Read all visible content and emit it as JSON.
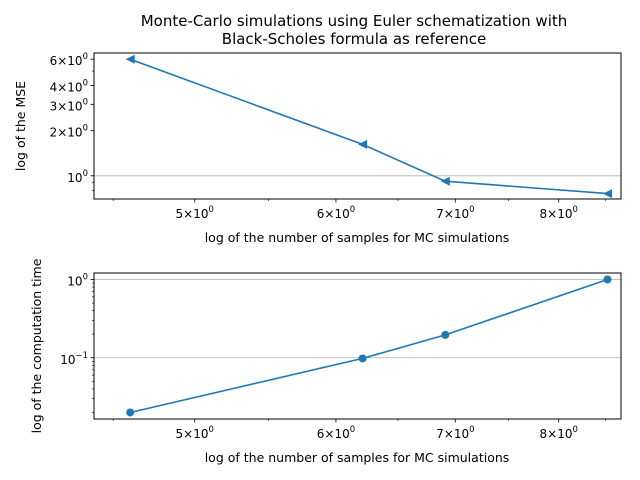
{
  "chart_data": [
    {
      "type": "line",
      "title": [
        "Monte-Carlo simulations using Euler schematization with",
        "Black-Scholes formula as reference"
      ],
      "xlabel": "log of the number of samples for MC simulations",
      "ylabel": "log of the MSE",
      "xscale": "log",
      "yscale": "log",
      "xlim": [
        4.39,
        8.67
      ],
      "ylim": [
        0.7,
        6.6
      ],
      "x_ticks": [
        {
          "value": 5,
          "mantissa": "5",
          "base": "10",
          "exp": "0"
        },
        {
          "value": 6,
          "mantissa": "6",
          "base": "10",
          "exp": "0"
        },
        {
          "value": 7,
          "mantissa": "7",
          "base": "10",
          "exp": "0"
        },
        {
          "value": 8,
          "mantissa": "8",
          "base": "10",
          "exp": "0"
        }
      ],
      "y_ticks": [
        {
          "value": 1,
          "mantissa": "",
          "base": "10",
          "exp": "0"
        },
        {
          "value": 2,
          "mantissa": "2",
          "base": "10",
          "exp": "0"
        },
        {
          "value": 3,
          "mantissa": "3",
          "base": "10",
          "exp": "0"
        },
        {
          "value": 4,
          "mantissa": "4",
          "base": "10",
          "exp": "0"
        },
        {
          "value": 6,
          "mantissa": "6",
          "base": "10",
          "exp": "0"
        }
      ],
      "grid": "y-major",
      "marker": "triangle-left",
      "color": "#1f77b4",
      "series": [
        {
          "x": [
            4.6,
            6.21,
            6.91,
            8.52
          ],
          "y": [
            6.0,
            1.62,
            0.92,
            0.76
          ]
        }
      ]
    },
    {
      "type": "line",
      "title": "",
      "xlabel": "log of the number of samples for MC simulations",
      "ylabel": "log of the computation time",
      "xscale": "log",
      "yscale": "log",
      "xlim": [
        4.39,
        8.67
      ],
      "ylim": [
        0.0165,
        1.21
      ],
      "x_ticks": [
        {
          "value": 5,
          "mantissa": "5",
          "base": "10",
          "exp": "0"
        },
        {
          "value": 6,
          "mantissa": "6",
          "base": "10",
          "exp": "0"
        },
        {
          "value": 7,
          "mantissa": "7",
          "base": "10",
          "exp": "0"
        },
        {
          "value": 8,
          "mantissa": "8",
          "base": "10",
          "exp": "0"
        }
      ],
      "y_ticks": [
        {
          "value": 0.1,
          "mantissa": "",
          "base": "10",
          "exp": "−1"
        },
        {
          "value": 1,
          "mantissa": "",
          "base": "10",
          "exp": "0"
        }
      ],
      "grid": "y-major",
      "marker": "circle",
      "color": "#1f77b4",
      "series": [
        {
          "x": [
            4.6,
            6.21,
            6.91,
            8.52
          ],
          "y": [
            0.02,
            0.098,
            0.196,
            1.0
          ]
        }
      ]
    }
  ]
}
